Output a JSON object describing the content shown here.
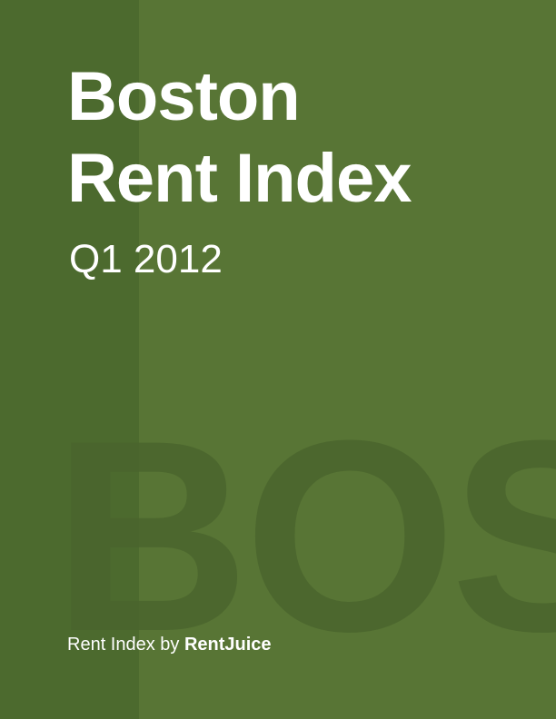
{
  "cover": {
    "title_line1": "Boston",
    "title_line2": "Rent Index",
    "subtitle": "Q1 2012",
    "watermark": "BOS",
    "footer_prefix": "Rent Index by ",
    "footer_brand": "RentJuice"
  },
  "colors": {
    "background": "#587535",
    "left_band": "#4c6a2e",
    "watermark": "#4a652d",
    "text": "#ffffff"
  }
}
